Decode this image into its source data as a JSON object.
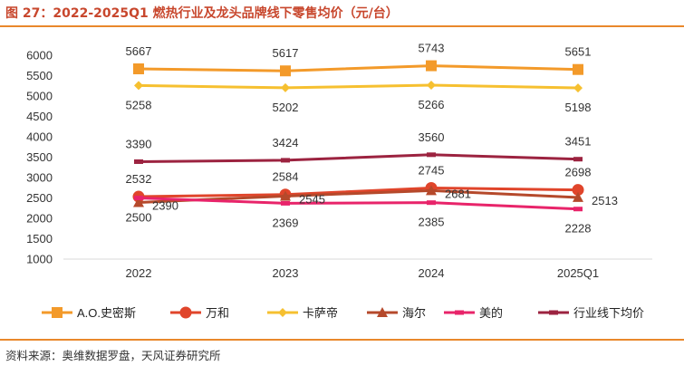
{
  "title": "图 27：2022-2025Q1 燃热行业及龙头品牌线下零售均价（元/台）",
  "footer": "资料来源：奥维数据罗盘，天风证券研究所",
  "chart_data": {
    "type": "line",
    "categories": [
      "2022",
      "2023",
      "2024",
      "2025Q1"
    ],
    "ylim": [
      1000,
      6000
    ],
    "yticks": [
      1000,
      1500,
      2000,
      2500,
      3000,
      3500,
      4000,
      4500,
      5000,
      5500,
      6000
    ],
    "grid": false,
    "legend_position": "bottom",
    "series": [
      {
        "name": "A.O.史密斯",
        "values": [
          5667,
          5617,
          5743,
          5651
        ],
        "color": "#f39a2a",
        "marker": "square",
        "label_pos": "above"
      },
      {
        "name": "万和",
        "values": [
          2532,
          2584,
          2745,
          2698
        ],
        "color": "#e0452b",
        "marker": "circle",
        "label_pos": "above"
      },
      {
        "name": "卡萨帝",
        "values": [
          5258,
          5202,
          5266,
          5198
        ],
        "color": "#f6c030",
        "marker": "diamond",
        "label_pos": "below"
      },
      {
        "name": "海尔",
        "values": [
          2390,
          2545,
          2681,
          2513
        ],
        "color": "#b5492b",
        "marker": "triangle",
        "label_pos": "right"
      },
      {
        "name": "美的",
        "values": [
          2500,
          2369,
          2385,
          2228
        ],
        "color": "#e8246a",
        "marker": "dash",
        "label_pos": "below"
      },
      {
        "name": "行业线下均价",
        "values": [
          3390,
          3424,
          3560,
          3451
        ],
        "color": "#9c2340",
        "marker": "dash",
        "label_pos": "above"
      }
    ]
  }
}
